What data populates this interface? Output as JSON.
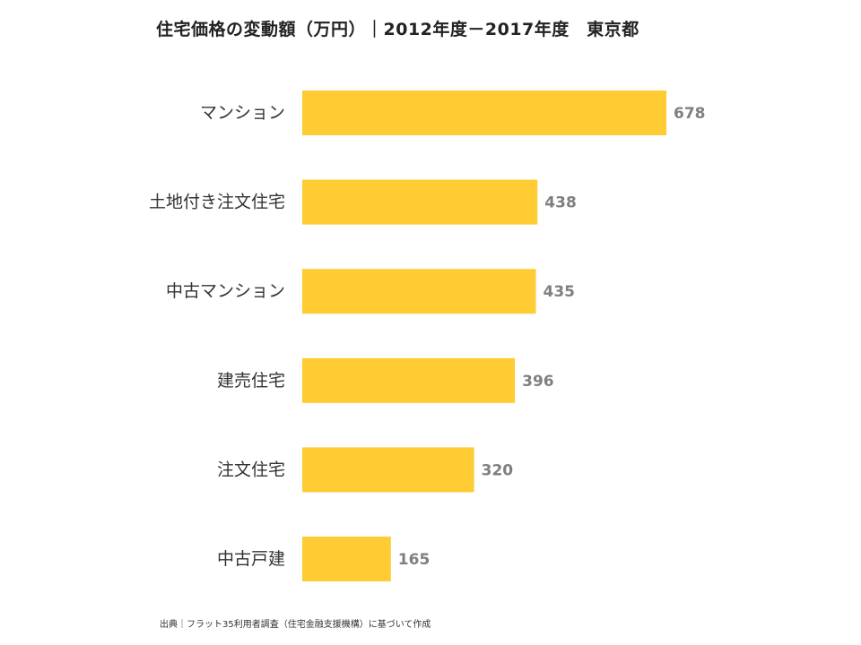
{
  "chart_data": {
    "type": "bar",
    "orientation": "horizontal",
    "title": "住宅価格の変動額（万円）｜2012年度－2017年度　東京都",
    "categories": [
      "マンション",
      "土地付き注文住宅",
      "中古マンション",
      "建売住宅",
      "注文住宅",
      "中古戸建"
    ],
    "values": [
      678,
      438,
      435,
      396,
      320,
      165
    ],
    "xlim": [
      0,
      700
    ],
    "grid": false,
    "legend": "none",
    "bar_color": "#FFCC33",
    "value_label_color": "#7F7F7F",
    "source": "出典｜フラット35利用者調査（住宅金融支援機構）に基づいて作成"
  }
}
